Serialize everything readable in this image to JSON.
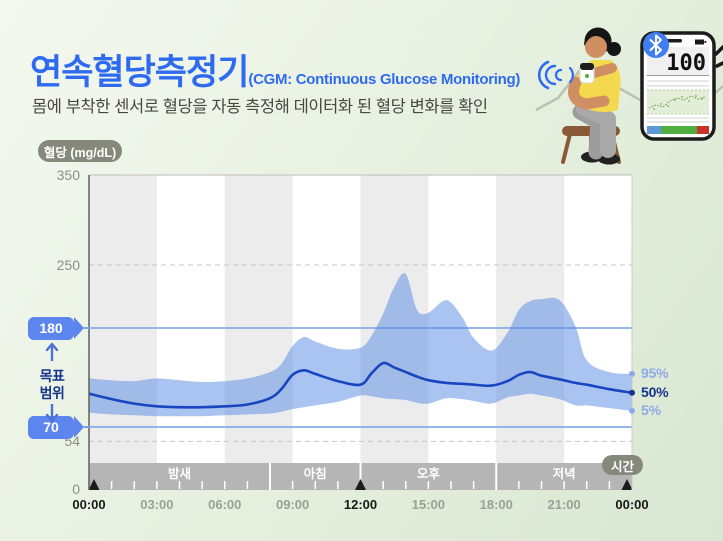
{
  "header": {
    "title": "연속혈당측정기",
    "title_suffix": "(CGM: Continuous Glucose Monitoring)",
    "subtitle": "몸에 부착한 센서로 혈당을 자동 측정해 데이터화 된 혈당 변화를 확인",
    "accent_color": "#2e6bf1"
  },
  "illustration": {
    "phone_reading": "100",
    "bluetooth_icon": "bluetooth",
    "sensor_icon": "cgm-sensor"
  },
  "chart": {
    "y_axis_badge": "혈당 (mg/dL)",
    "time_badge": "시간",
    "target_label_line1": "목표",
    "target_label_line2": "범위",
    "y_ticks": {
      "t350": "350",
      "t250": "250",
      "t54": "54",
      "t0": "0"
    },
    "target_badges": {
      "high": "180",
      "low": "70"
    },
    "percent_labels": [
      "95%",
      "50%",
      "5%"
    ]
  },
  "chart_data": {
    "type": "area",
    "title": "24h continuous glucose profile (percentile band)",
    "xlabel": "시간",
    "ylabel": "혈당 (mg/dL)",
    "xlim_hours": [
      0,
      24
    ],
    "ylim": [
      0,
      350
    ],
    "x_tick_labels": [
      "00:00",
      "03:00",
      "06:00",
      "09:00",
      "12:00",
      "15:00",
      "18:00",
      "21:00",
      "00:00"
    ],
    "x_major_indices": [
      0,
      4,
      8
    ],
    "marker_hours": [
      0,
      12,
      24
    ],
    "dashed_levels": [
      250,
      54
    ],
    "target_range": {
      "low": 70,
      "high": 180
    },
    "stripe_hours": 3,
    "periods": [
      {
        "label": "밤새",
        "start": 0,
        "end": 8
      },
      {
        "label": "아침",
        "start": 8,
        "end": 12
      },
      {
        "label": "오후",
        "start": 12,
        "end": 18
      },
      {
        "label": "저녁",
        "start": 18,
        "end": 24
      }
    ],
    "x_hours": [
      0,
      1,
      2,
      3,
      4,
      5,
      6,
      7,
      8,
      8.5,
      9,
      9.5,
      10,
      11,
      12,
      12.5,
      13,
      13.5,
      14,
      14.5,
      15,
      15.8,
      16.5,
      17,
      17.8,
      18.5,
      19,
      19.5,
      20,
      20.8,
      21.5,
      22,
      23,
      24
    ],
    "series": [
      {
        "name": "95%",
        "values": [
          124,
          122,
          121,
          124,
          122,
          120,
          121,
          124,
          131,
          140,
          160,
          170,
          165,
          157,
          158,
          172,
          196,
          226,
          240,
          200,
          197,
          211,
          192,
          169,
          155,
          175,
          200,
          210,
          212,
          211,
          182,
          144,
          131,
          129
        ]
      },
      {
        "name": "50%",
        "values": [
          107,
          101,
          96,
          93,
          92,
          92,
          93,
          95,
          102,
          112,
          128,
          133,
          129,
          121,
          117,
          130,
          141,
          136,
          131,
          126,
          122,
          119,
          118,
          117,
          116,
          121,
          128,
          131,
          127,
          123,
          119,
          117,
          112,
          108
        ]
      },
      {
        "name": "5%",
        "values": [
          86,
          84,
          83,
          82,
          82,
          82,
          83,
          84,
          85,
          87,
          90,
          92,
          94,
          98,
          105,
          104,
          102,
          101,
          100,
          97,
          96,
          102,
          101,
          99,
          96,
          103,
          105,
          107,
          105,
          101,
          94,
          94,
          91,
          88
        ]
      }
    ],
    "legend_position": "right-edge",
    "grid": "dashed at 250 and 54, solid target lines at 180 and 70, alternating 3h background stripes",
    "colors": {
      "band": "#5589e6",
      "band_opacity": 0.5,
      "median": "#1846c1",
      "target_line": "#76a0e6",
      "dashed_grid": "#c6c6c6",
      "stripe": "#ececec",
      "period_band": "#b5b5b5",
      "percent_light": "#8fa9ea",
      "percent_dark": "#16348c",
      "marker": "#1b1b1b"
    }
  }
}
